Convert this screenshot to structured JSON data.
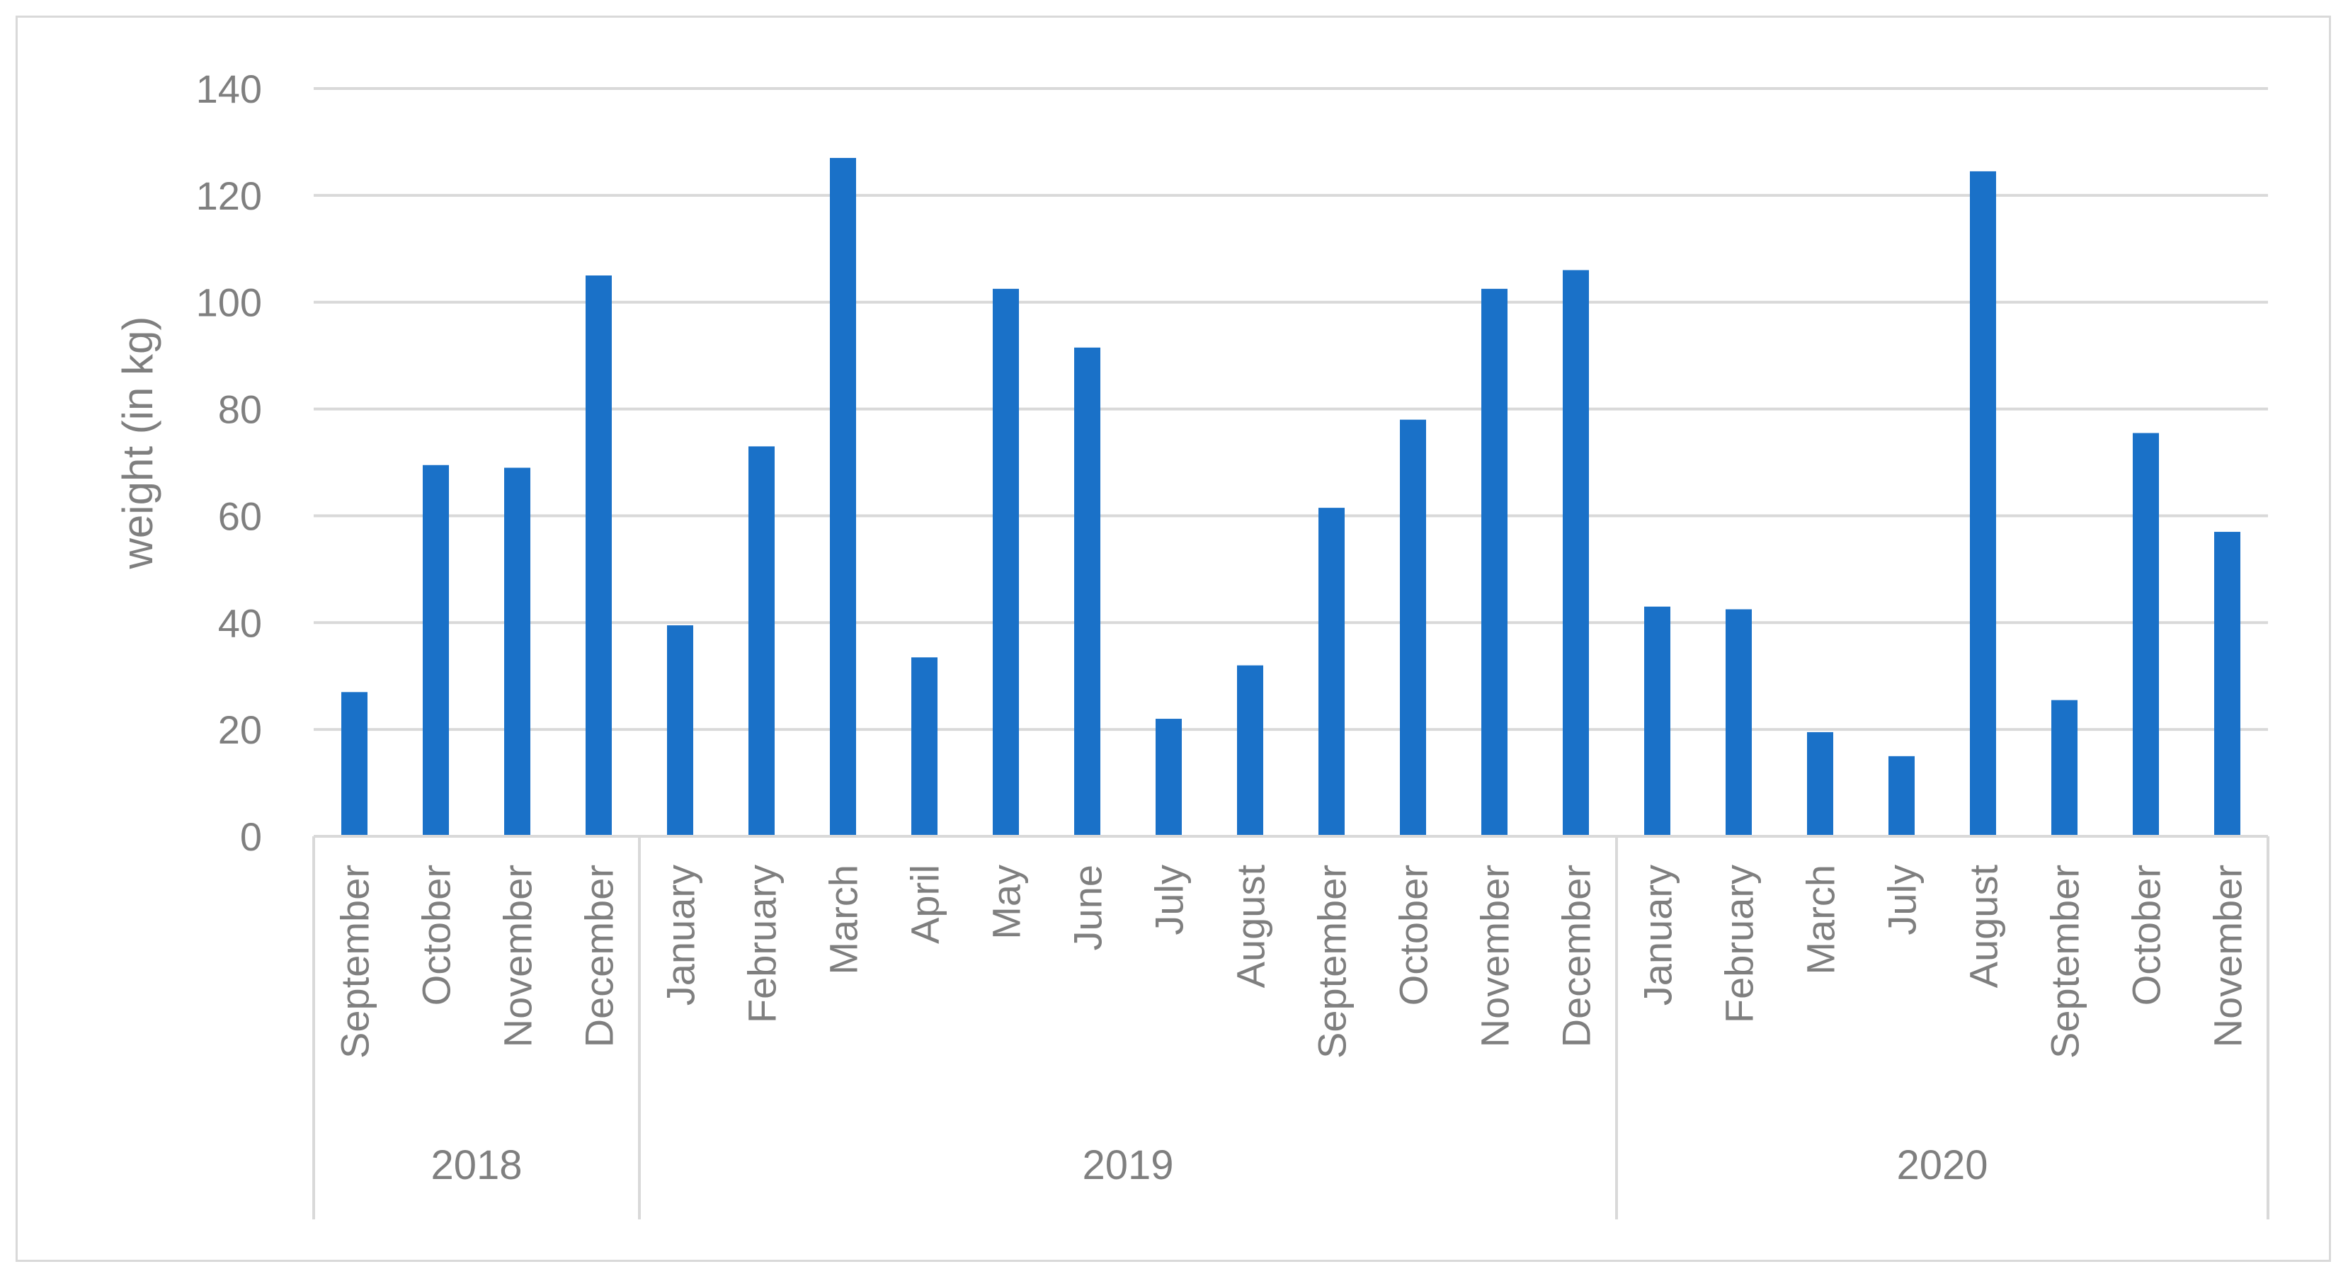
{
  "chart_data": {
    "type": "bar",
    "ylabel": "weight (in kg)",
    "xlabel": "",
    "ylim": [
      0,
      140
    ],
    "y_ticks": [
      "0",
      "20",
      "40",
      "60",
      "80",
      "100",
      "120",
      "140"
    ],
    "grid": true,
    "legend": "none",
    "bar_color": "#1a71c8",
    "groups": [
      {
        "label": "2018",
        "start": 0,
        "count": 4
      },
      {
        "label": "2019",
        "start": 4,
        "count": 12
      },
      {
        "label": "2020",
        "start": 16,
        "count": 8
      }
    ],
    "categories": [
      "September",
      "October",
      "November",
      "December",
      "January",
      "February",
      "March",
      "April",
      "May",
      "June",
      "July",
      "August",
      "September",
      "October",
      "November",
      "December",
      "January",
      "February",
      "March",
      "July",
      "August",
      "September",
      "October",
      "November"
    ],
    "values": [
      27,
      69.5,
      69,
      105,
      39.5,
      73,
      127,
      33.5,
      102.5,
      91.5,
      22,
      32,
      61.5,
      78,
      102.5,
      106,
      43,
      42.5,
      19.5,
      15,
      124.5,
      25.5,
      75.5,
      57
    ]
  }
}
